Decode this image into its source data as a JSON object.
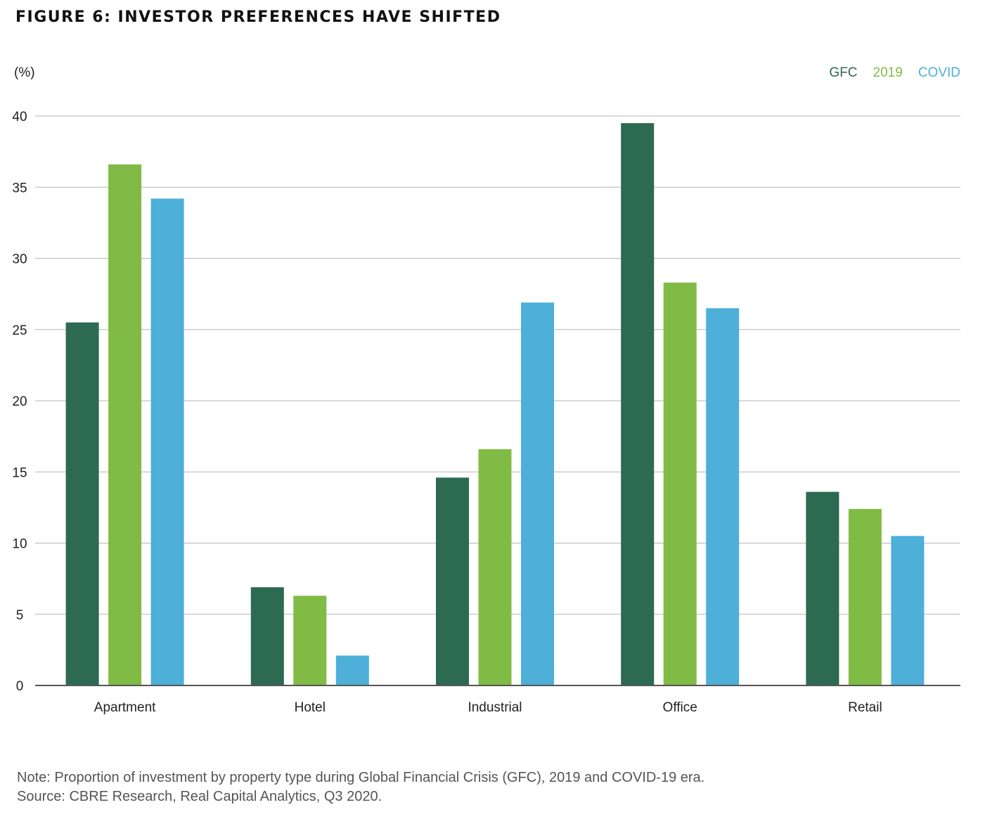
{
  "figure": {
    "title": "FIGURE 6: INVESTOR PREFERENCES HAVE SHIFTED",
    "unit_label": "(%)",
    "note": "Note: Proportion of investment by property type during Global Financial Crisis (GFC), 2019 and COVID-19 era.",
    "source": "Source: CBRE Research, Real Capital Analytics, Q3 2020."
  },
  "chart_data": {
    "type": "bar",
    "title": "FIGURE 6: INVESTOR PREFERENCES HAVE SHIFTED",
    "ylabel": "(%)",
    "xlabel": "",
    "categories": [
      "Apartment",
      "Hotel",
      "Industrial",
      "Office",
      "Retail"
    ],
    "series": [
      {
        "name": "GFC",
        "color": "#2c6a52",
        "values": [
          25.5,
          6.9,
          14.6,
          39.5,
          13.6
        ]
      },
      {
        "name": "2019",
        "color": "#80bc45",
        "values": [
          36.6,
          6.3,
          16.6,
          28.3,
          12.4
        ]
      },
      {
        "name": "COVID",
        "color": "#4eafd9",
        "values": [
          34.2,
          2.1,
          26.9,
          26.5,
          10.5
        ]
      }
    ],
    "ylim": [
      0,
      40
    ],
    "yticks": [
      0,
      5,
      10,
      15,
      20,
      25,
      30,
      35,
      40
    ],
    "grid": true,
    "legend_position": "top-right"
  }
}
